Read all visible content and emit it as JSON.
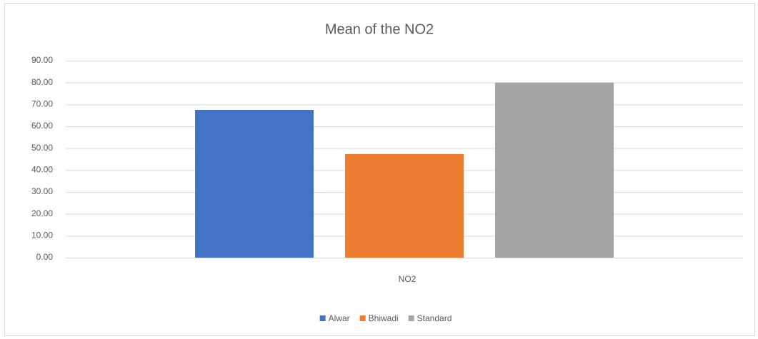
{
  "chart_data": {
    "type": "bar",
    "title": "Mean of the NO2",
    "categories": [
      "NO2"
    ],
    "series": [
      {
        "name": "Alwar",
        "color": "#4472c4",
        "values": [
          67.5
        ]
      },
      {
        "name": "Bhiwadi",
        "color": "#ed7d31",
        "values": [
          47.3
        ]
      },
      {
        "name": "Standard",
        "color": "#a5a5a5",
        "values": [
          80
        ]
      }
    ],
    "ylim": [
      0,
      90
    ],
    "yticks": [
      {
        "value": 0,
        "label": "0.00"
      },
      {
        "value": 10,
        "label": "10.00"
      },
      {
        "value": 20,
        "label": "20.00"
      },
      {
        "value": 30,
        "label": "30.00"
      },
      {
        "value": 40,
        "label": "40.00"
      },
      {
        "value": 50,
        "label": "50.00"
      },
      {
        "value": 60,
        "label": "60.00"
      },
      {
        "value": 70,
        "label": "70.00"
      },
      {
        "value": 80,
        "label": "80.00"
      },
      {
        "value": 90,
        "label": "90.00"
      }
    ],
    "grid": true,
    "legend": "bottom"
  }
}
